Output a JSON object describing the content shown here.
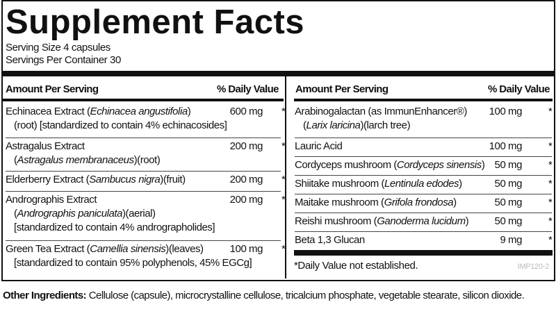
{
  "title": "Supplement Facts",
  "serving_size": "Serving Size 4 capsules",
  "servings_per_container": "Servings Per Container 30",
  "header": {
    "amount": "Amount Per Serving",
    "dv": "% Daily Value"
  },
  "left_rows": [
    {
      "name": "Echinacea Extract (",
      "latin": "Echinacea angustifolia",
      "post": ")",
      "amount": "600 mg",
      "dv": "*",
      "line2": "(root) [standardized to contain 4% echinacosides]"
    },
    {
      "name": "Astragalus Extract",
      "amount": "200 mg",
      "dv": "*",
      "latin2": "Astragalus membranaceus",
      "line2_post": ")(root)"
    },
    {
      "name": "Elderberry Extract (",
      "latin": "Sambucus nigra",
      "post": ")(fruit)",
      "amount": "200 mg",
      "dv": "*"
    },
    {
      "name": "Andrographis Extract",
      "amount": "200 mg",
      "dv": "*",
      "latin2": "Andrographis paniculata",
      "line2_post": ")(aerial)",
      "line3": "[standardized to contain 4% andrographolides]"
    },
    {
      "name": "Green Tea Extract (",
      "latin": "Camellia sinensis",
      "post": ")(leaves)",
      "amount": "100 mg",
      "dv": "*",
      "line2": "[standardized to contain 95% polyphenols, 45% EGCg]"
    }
  ],
  "right_rows": [
    {
      "name": "Arabinogalactan (as ImmunEnhancer®)",
      "amount": "100 mg",
      "dv": "*",
      "latin2": "Larix laricina",
      "line2_post": ")(larch tree)"
    },
    {
      "name": "Lauric Acid",
      "amount": "100 mg",
      "dv": "*"
    },
    {
      "name": "Cordyceps mushroom (",
      "latin": "Cordyceps sinensis",
      "post": ")",
      "amount": "50 mg",
      "dv": "*"
    },
    {
      "name": "Shiitake mushroom (",
      "latin": "Lentinula edodes",
      "post": ")",
      "amount": "50 mg",
      "dv": "*"
    },
    {
      "name": "Maitake mushroom (",
      "latin": "Grifola frondosa",
      "post": ")",
      "amount": "50 mg",
      "dv": "*"
    },
    {
      "name": "Reishi mushroom (",
      "latin": "Ganoderma lucidum",
      "post": ")",
      "amount": "50 mg",
      "dv": "*"
    },
    {
      "name": "Beta 1,3 Glucan",
      "amount": "9 mg",
      "dv": "*"
    }
  ],
  "footnote": "*Daily Value not established.",
  "product_code": "IMP120-2",
  "other_ingredients": {
    "label": "Other Ingredients:",
    "text": " Cellulose (capsule), microcrystalline cellulose, tricalcium phosphate, vegetable stearate, silicon dioxide."
  }
}
